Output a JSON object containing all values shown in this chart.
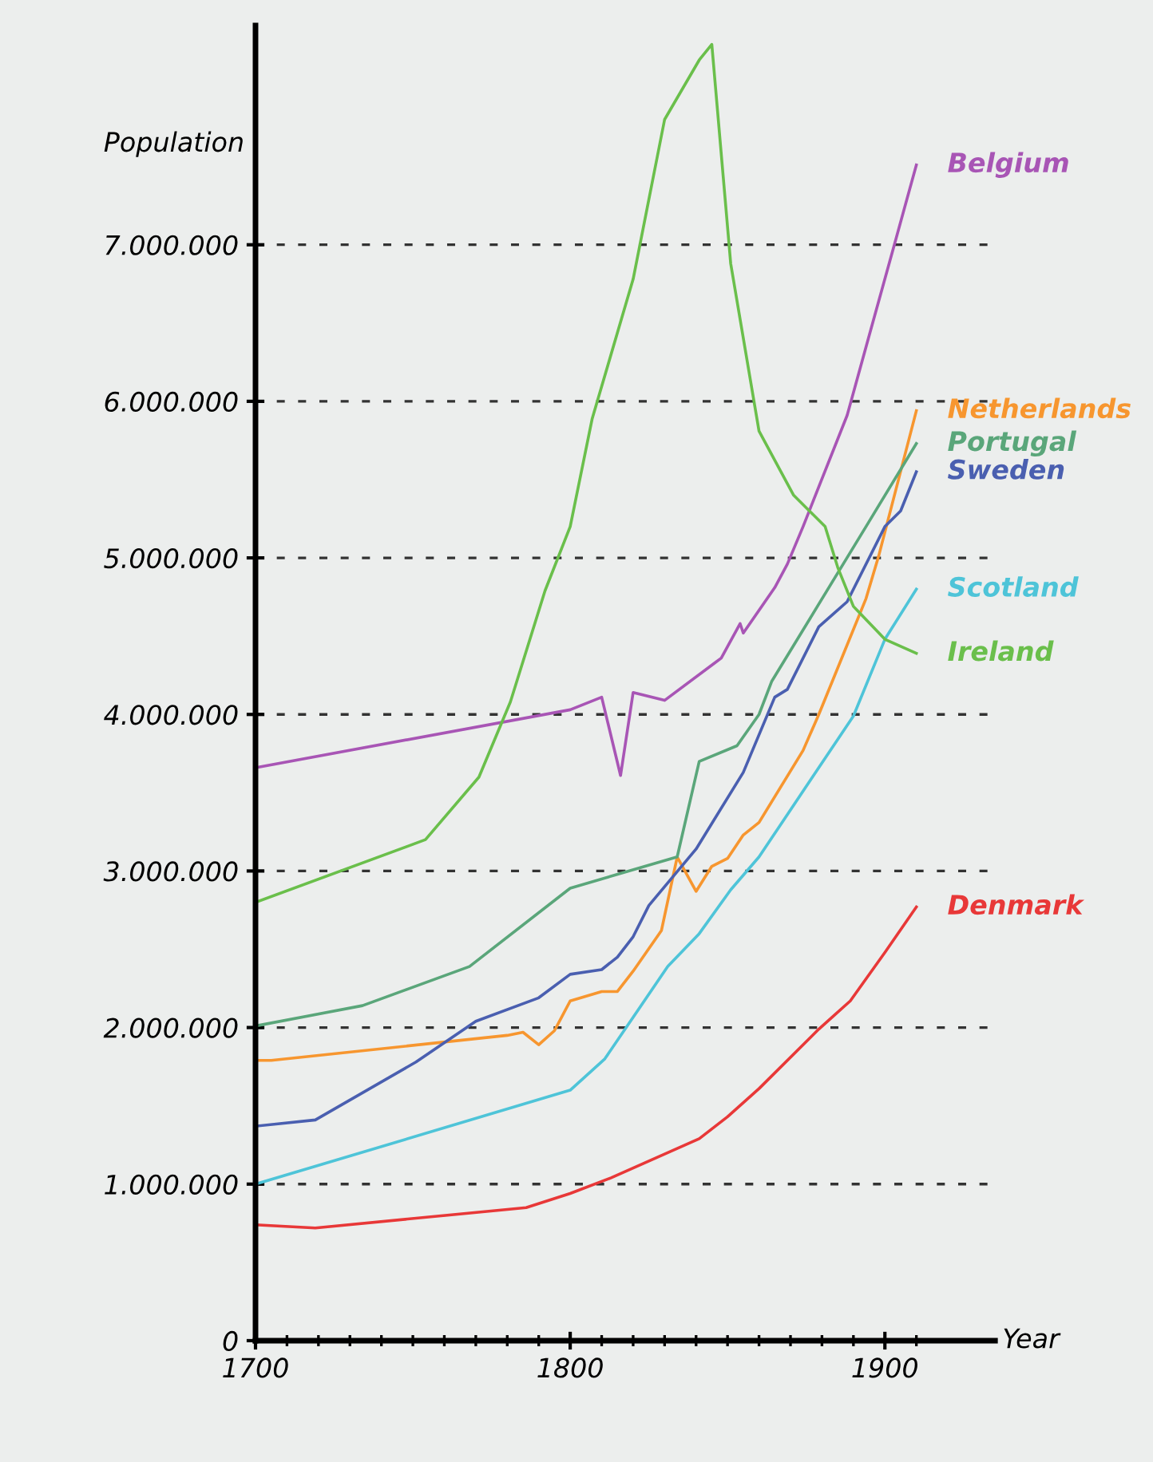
{
  "chart_data": {
    "type": "line",
    "xlabel": "Year",
    "ylabel": "Population",
    "xlim": [
      1700,
      1935
    ],
    "ylim": [
      0,
      8400000
    ],
    "xticks": [
      1700,
      {
        "value": 1710,
        "label": null
      },
      {
        "value": 1720,
        "label": null
      },
      {
        "value": 1730,
        "label": null
      },
      {
        "value": 1740,
        "label": null
      },
      {
        "value": 1750,
        "label": null
      },
      {
        "value": 1760,
        "label": null
      },
      {
        "value": 1770,
        "label": null
      },
      {
        "value": 1780,
        "label": null
      },
      {
        "value": 1790,
        "label": null
      },
      1800,
      {
        "value": 1810,
        "label": null
      },
      {
        "value": 1820,
        "label": null
      },
      {
        "value": 1830,
        "label": null
      },
      {
        "value": 1840,
        "label": null
      },
      {
        "value": 1850,
        "label": null
      },
      {
        "value": 1860,
        "label": null
      },
      {
        "value": 1870,
        "label": null
      },
      {
        "value": 1880,
        "label": null
      },
      {
        "value": 1890,
        "label": null
      },
      1900,
      {
        "value": 1910,
        "label": null
      }
    ],
    "yticks": [
      0,
      {
        "value": 1000000,
        "label": "1.000.000"
      },
      {
        "value": 2000000,
        "label": "2.000.000"
      },
      {
        "value": 3000000,
        "label": "3.000.000"
      },
      {
        "value": 4000000,
        "label": "4.000.000"
      },
      {
        "value": 5000000,
        "label": "5.000.000"
      },
      {
        "value": 6000000,
        "label": "6.000.000"
      },
      {
        "value": 7000000,
        "label": "7.000.000"
      }
    ],
    "grid": "y",
    "legend": false,
    "marker": "none",
    "line_style": "solid",
    "series": [
      {
        "name": "Belgium",
        "color": "#a855b5",
        "x": [
          1700,
          1800,
          1810,
          1816,
          1820,
          1830,
          1846,
          1848,
          1854,
          1855,
          1865,
          1869,
          1874,
          1888,
          1895,
          1903,
          1910
        ],
        "values": [
          3660000,
          4030000,
          4110000,
          3610000,
          4140000,
          4090000,
          4330000,
          4360000,
          4580000,
          4520000,
          4810000,
          4960000,
          5200000,
          5910000,
          6420000,
          7000000,
          7510000
        ]
      },
      {
        "name": "Netherlands",
        "color": "#f7962f",
        "x": [
          1700,
          1705,
          1780,
          1785,
          1790,
          1795,
          1800,
          1810,
          1815,
          1820,
          1829,
          1834,
          1840,
          1845,
          1850,
          1855,
          1860,
          1874,
          1879,
          1894,
          1898,
          1910
        ],
        "values": [
          1790000,
          1790000,
          1950000,
          1970000,
          1890000,
          1980000,
          2170000,
          2230000,
          2230000,
          2360000,
          2620000,
          3090000,
          2870000,
          3030000,
          3080000,
          3230000,
          3310000,
          3770000,
          4000000,
          4740000,
          5010000,
          5940000
        ]
      },
      {
        "name": "Portugal",
        "color": "#5aa67a",
        "x": [
          1700,
          1734,
          1768,
          1800,
          1834,
          1841,
          1853,
          1860,
          1864,
          1894,
          1910
        ],
        "values": [
          2010000,
          2140000,
          2390000,
          2890000,
          3090000,
          3700000,
          3800000,
          4000000,
          4210000,
          5200000,
          5730000
        ]
      },
      {
        "name": "Sweden",
        "color": "#4a5fb0",
        "x": [
          1700,
          1719,
          1751,
          1770,
          1790,
          1800,
          1810,
          1815,
          1820,
          1825,
          1840,
          1855,
          1865,
          1869,
          1879,
          1888,
          1900,
          1905,
          1910
        ],
        "values": [
          1370000,
          1410000,
          1780000,
          2040000,
          2190000,
          2340000,
          2370000,
          2450000,
          2580000,
          2780000,
          3140000,
          3630000,
          4110000,
          4160000,
          4560000,
          4720000,
          5200000,
          5300000,
          5550000
        ]
      },
      {
        "name": "Scotland",
        "color": "#4ec4d8",
        "x": [
          1700,
          1800,
          1811,
          1831,
          1841,
          1851,
          1860,
          1890,
          1900,
          1910
        ],
        "values": [
          1000000,
          1600000,
          1800000,
          2390000,
          2600000,
          2880000,
          3090000,
          3990000,
          4480000,
          4800000
        ]
      },
      {
        "name": "Ireland",
        "color": "#6abf4b",
        "x": [
          1700,
          1754,
          1771,
          1781,
          1792,
          1800,
          1807,
          1820,
          1830,
          1841,
          1845,
          1851,
          1860,
          1871,
          1881,
          1885,
          1890,
          1900,
          1910
        ],
        "values": [
          2800000,
          3200000,
          3600000,
          4080000,
          4790000,
          5200000,
          5890000,
          6780000,
          7800000,
          8180000,
          8280000,
          6880000,
          5810000,
          5400000,
          5200000,
          4940000,
          4690000,
          4480000,
          4390000
        ]
      },
      {
        "name": "Denmark",
        "color": "#e83838",
        "x": [
          1700,
          1719,
          1786,
          1800,
          1813,
          1841,
          1850,
          1860,
          1879,
          1889,
          1900,
          1910
        ],
        "values": [
          740000,
          720000,
          850000,
          940000,
          1040000,
          1290000,
          1430000,
          1610000,
          1990000,
          2170000,
          2480000,
          2770000
        ]
      }
    ]
  }
}
